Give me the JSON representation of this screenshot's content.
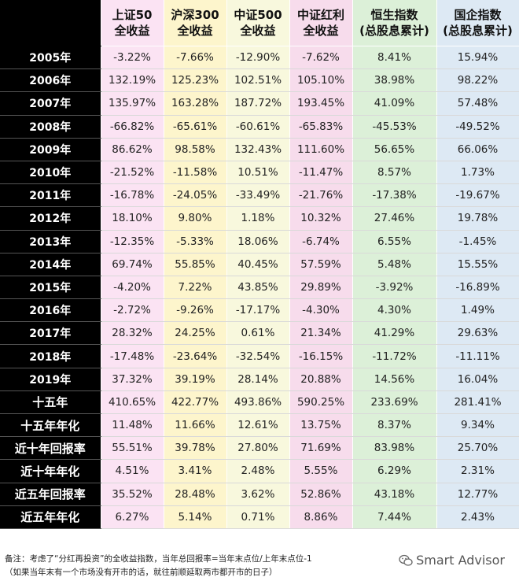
{
  "headers": [
    "",
    "上证50\n全收益",
    "沪深300\n全收益",
    "中证500\n全收益",
    "中证红利\n全收益",
    "恒生指数\n(总股息累计)",
    "国企指数\n(总股息累计)"
  ],
  "rows": [
    {
      "label": "2005年",
      "values": [
        "-3.22%",
        "-7.66%",
        "-12.90%",
        "-7.62%",
        "8.41%",
        "15.94%"
      ]
    },
    {
      "label": "2006年",
      "values": [
        "132.19%",
        "125.23%",
        "102.51%",
        "105.10%",
        "38.98%",
        "98.22%"
      ]
    },
    {
      "label": "2007年",
      "values": [
        "135.97%",
        "163.28%",
        "187.72%",
        "193.45%",
        "41.09%",
        "57.48%"
      ]
    },
    {
      "label": "2008年",
      "values": [
        "-66.82%",
        "-65.61%",
        "-60.61%",
        "-65.83%",
        "-45.53%",
        "-49.52%"
      ]
    },
    {
      "label": "2009年",
      "values": [
        "86.62%",
        "98.58%",
        "132.43%",
        "111.60%",
        "56.65%",
        "66.06%"
      ]
    },
    {
      "label": "2010年",
      "values": [
        "-21.52%",
        "-11.58%",
        "10.51%",
        "-11.47%",
        "8.57%",
        "1.73%"
      ]
    },
    {
      "label": "2011年",
      "values": [
        "-16.78%",
        "-24.05%",
        "-33.49%",
        "-21.76%",
        "-17.38%",
        "-19.67%"
      ]
    },
    {
      "label": "2012年",
      "values": [
        "18.10%",
        "9.80%",
        "1.18%",
        "10.32%",
        "27.46%",
        "19.78%"
      ]
    },
    {
      "label": "2013年",
      "values": [
        "-12.35%",
        "-5.33%",
        "18.06%",
        "-6.74%",
        "6.55%",
        "-1.45%"
      ]
    },
    {
      "label": "2014年",
      "values": [
        "69.74%",
        "55.85%",
        "40.45%",
        "57.59%",
        "5.48%",
        "15.55%"
      ]
    },
    {
      "label": "2015年",
      "values": [
        "-4.20%",
        "7.22%",
        "43.85%",
        "29.89%",
        "-3.92%",
        "-16.89%"
      ]
    },
    {
      "label": "2016年",
      "values": [
        "-2.72%",
        "-9.26%",
        "-17.17%",
        "-4.30%",
        "4.30%",
        "1.49%"
      ]
    },
    {
      "label": "2017年",
      "values": [
        "28.32%",
        "24.25%",
        "0.61%",
        "21.34%",
        "41.29%",
        "29.63%"
      ]
    },
    {
      "label": "2018年",
      "values": [
        "-17.48%",
        "-23.64%",
        "-32.54%",
        "-16.15%",
        "-11.72%",
        "-11.11%"
      ]
    },
    {
      "label": "2019年",
      "values": [
        "37.32%",
        "39.19%",
        "28.14%",
        "20.88%",
        "14.56%",
        "16.04%"
      ]
    },
    {
      "label": "十五年",
      "values": [
        "410.65%",
        "422.77%",
        "493.86%",
        "590.25%",
        "233.69%",
        "281.41%"
      ],
      "summary": true
    },
    {
      "label": "十五年年化",
      "values": [
        "11.48%",
        "11.66%",
        "12.61%",
        "13.75%",
        "8.37%",
        "9.34%"
      ],
      "summary": true
    },
    {
      "label": "近十年回报率",
      "values": [
        "55.51%",
        "39.78%",
        "27.80%",
        "71.69%",
        "83.98%",
        "25.70%"
      ],
      "summary": true
    },
    {
      "label": "近十年年化",
      "values": [
        "4.51%",
        "3.41%",
        "2.48%",
        "5.55%",
        "6.29%",
        "2.31%"
      ],
      "summary": true
    },
    {
      "label": "近五年回报率",
      "values": [
        "35.52%",
        "28.48%",
        "3.62%",
        "52.86%",
        "43.18%",
        "12.77%"
      ],
      "summary": true
    },
    {
      "label": "近五年年化",
      "values": [
        "6.27%",
        "5.14%",
        "0.71%",
        "8.86%",
        "7.44%",
        "2.43%"
      ],
      "summary": true
    }
  ],
  "footer": {
    "note_line1": "备注：考虑了“分红再投资”的全收益指数，当年总回报率=当年末点位/上年末点位-1",
    "note_line2": "（如果当年末有一个市场没有开市的话，就往前顺延取两市都开市的日子）",
    "brand": "Smart Advisor",
    "brand_icon": "wechat-icon"
  }
}
